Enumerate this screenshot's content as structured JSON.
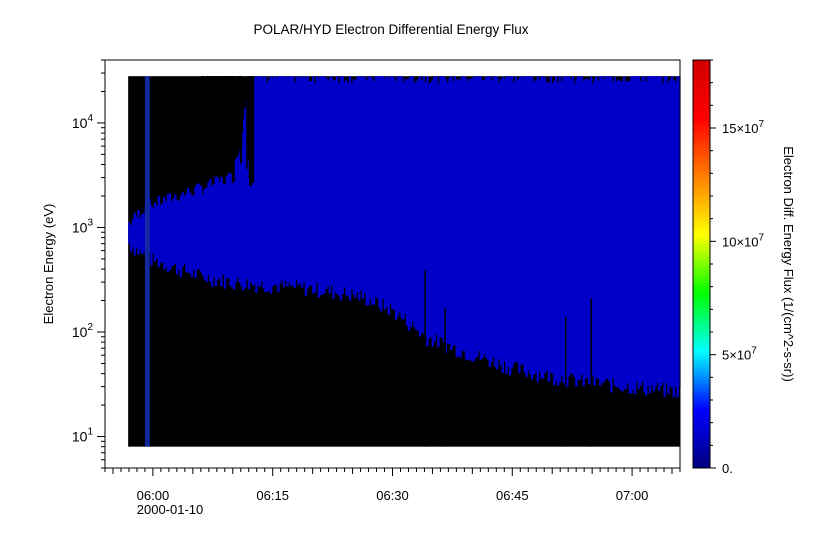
{
  "chart_data": {
    "type": "heatmap",
    "title": "POLAR/HYD  Electron Differential Energy Flux",
    "ylabel": "Electron Energy (eV)",
    "xlabel": "",
    "x_date_label": "2000-01-10",
    "x_ticks": [
      "06:00",
      "06:15",
      "06:30",
      "06:45",
      "07:00"
    ],
    "x_range_minutes": [
      354,
      426
    ],
    "y_scale": "log",
    "y_range": [
      5,
      40000
    ],
    "y_ticks": [
      {
        "base": "10",
        "exp": "1",
        "value": 10
      },
      {
        "base": "10",
        "exp": "2",
        "value": 100
      },
      {
        "base": "10",
        "exp": "3",
        "value": 1000
      },
      {
        "base": "10",
        "exp": "4",
        "value": 10000
      }
    ],
    "data_energy_range": [
      8,
      28000
    ],
    "colorbar": {
      "label": "Electron Diff. Energy Flux (1/(cm^2-s-sr))",
      "range": [
        0,
        180000000
      ],
      "ticks": [
        {
          "text": "0.",
          "value": 0
        },
        {
          "mant": "5",
          "exp": "7",
          "value": 50000000
        },
        {
          "mant": "10",
          "exp": "7",
          "value": 100000000
        },
        {
          "mant": "15",
          "exp": "7",
          "value": 150000000
        }
      ],
      "colors": [
        "#00007f",
        "#0000ff",
        "#00ffff",
        "#00ff00",
        "#ffff00",
        "#ff7f00",
        "#ff0000",
        "#d00000"
      ]
    },
    "fill_color": "#000000",
    "band_color": "#0000c8",
    "gap_color": "#1428a0",
    "band_profile": [
      {
        "t": 356.9,
        "lo": 700,
        "hi": 1100
      },
      {
        "t": 359.0,
        "lo": 520,
        "hi": 1600
      },
      {
        "t": 362.0,
        "lo": 430,
        "hi": 1900
      },
      {
        "t": 366.0,
        "lo": 340,
        "hi": 2400
      },
      {
        "t": 370.0,
        "lo": 300,
        "hi": 3100
      },
      {
        "t": 372.0,
        "lo": 290,
        "hi": 28000
      },
      {
        "t": 380.0,
        "lo": 260,
        "hi": 28000
      },
      {
        "t": 386.0,
        "lo": 220,
        "hi": 28000
      },
      {
        "t": 390.0,
        "lo": 160,
        "hi": 28000
      },
      {
        "t": 394.0,
        "lo": 90,
        "hi": 28000
      },
      {
        "t": 400.0,
        "lo": 60,
        "hi": 28000
      },
      {
        "t": 406.0,
        "lo": 43,
        "hi": 28000
      },
      {
        "t": 412.0,
        "lo": 35,
        "hi": 28000
      },
      {
        "t": 418.0,
        "lo": 31,
        "hi": 28000
      },
      {
        "t": 426.0,
        "lo": 27,
        "hi": 28000
      }
    ],
    "upper_black": [
      {
        "t": 356.9,
        "hi": 28000
      },
      {
        "t": 366.0,
        "hi": 28000
      },
      {
        "t": 368.0,
        "hi": 12000
      },
      {
        "t": 369.5,
        "hi": 9000
      },
      {
        "t": 371.0,
        "hi": 6500
      },
      {
        "t": 372.0,
        "hi": 4000
      }
    ],
    "data_gap_minutes": [
      359.0,
      359.6
    ]
  }
}
